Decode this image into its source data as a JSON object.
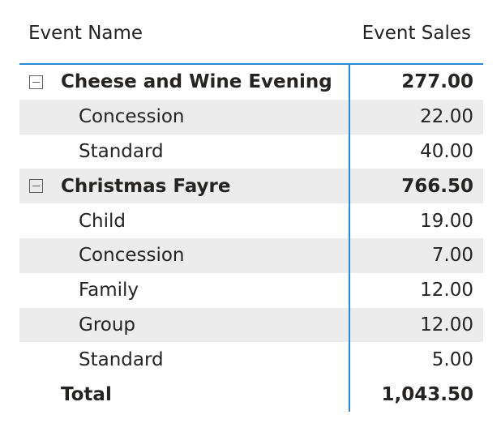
{
  "matrix": {
    "columns": {
      "name": "Event Name",
      "sales": "Event Sales"
    },
    "rows": [
      {
        "type": "group",
        "label": "Cheese and Wine Evening",
        "value": "277.00",
        "toggle_icon": "collapse-icon"
      },
      {
        "type": "child",
        "label": "Concession",
        "value": "22.00"
      },
      {
        "type": "child",
        "label": "Standard",
        "value": "40.00"
      },
      {
        "type": "group",
        "label": "Christmas Fayre",
        "value": "766.50",
        "toggle_icon": "collapse-icon"
      },
      {
        "type": "child",
        "label": "Child",
        "value": "19.00"
      },
      {
        "type": "child",
        "label": "Concession",
        "value": "7.00"
      },
      {
        "type": "child",
        "label": "Family",
        "value": "12.00"
      },
      {
        "type": "child",
        "label": "Group",
        "value": "12.00"
      },
      {
        "type": "child",
        "label": "Standard",
        "value": "5.00"
      }
    ],
    "total": {
      "label": "Total",
      "value": "1,043.50"
    }
  },
  "colors": {
    "accent": "#2b88d8",
    "row_shade": "#ececec",
    "text": "#252423"
  }
}
